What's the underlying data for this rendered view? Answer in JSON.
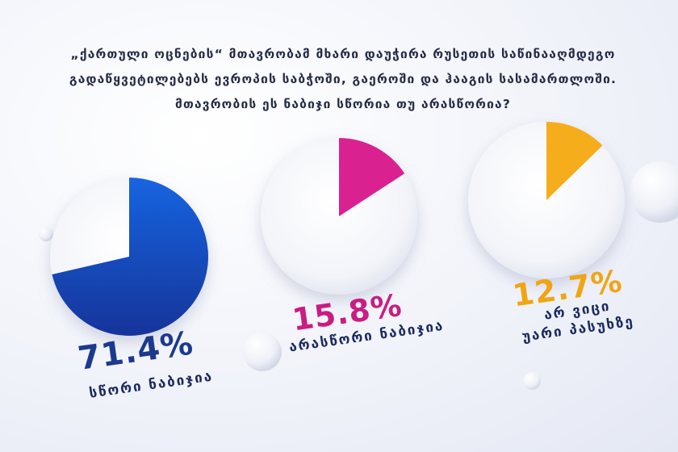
{
  "question": {
    "lines": [
      "„ქართული ოცნების“ მთავრობამ მხარი დაუჭირა რუსეთის საწინააღმდეგო",
      "გადაწყვეტილებებს ევროპის საბჭოში, გაეროში და ჰააგის სასამართლოში.",
      "მთავრობის ეს ნაბიჯი სწორია თუ არასწორია?"
    ]
  },
  "chart_data": {
    "type": "pie",
    "slices": [
      {
        "value": 71.4,
        "value_label": "71.4%",
        "label_lines": [
          "სწორი ნაბიჯია"
        ],
        "color": "#1450c4"
      },
      {
        "value": 15.8,
        "value_label": "15.8%",
        "label_lines": [
          "არასწორი ნაბიჯია"
        ],
        "color": "#d9248f"
      },
      {
        "value": 12.7,
        "value_label": "12.7%",
        "label_lines": [
          "არ ვიცი",
          "უარი პასუხზე"
        ],
        "color": "#f5ad1b"
      }
    ]
  }
}
